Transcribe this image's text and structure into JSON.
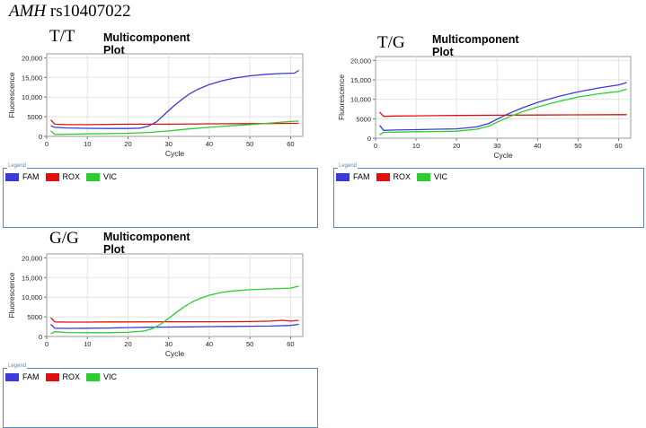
{
  "figure": {
    "gene": "AMH",
    "snp": "rs10407022"
  },
  "colors": {
    "FAM": "#3b3bd9",
    "ROX": "#e01010",
    "VIC": "#2ecc2e"
  },
  "chart_data": [
    {
      "type": "line",
      "genotype": "T/T",
      "title": "Multicomponent Plot",
      "xlabel": "Cycle",
      "ylabel": "Fluorescence",
      "xlim": [
        0,
        63
      ],
      "ylim": [
        0,
        21000
      ],
      "xticks": [
        "0",
        "10",
        "20",
        "30",
        "40",
        "50",
        "60"
      ],
      "yticks": [
        "0",
        "5000",
        "10,000",
        "15,000",
        "20,000"
      ],
      "legend_caption": "Legend",
      "legend": [
        "FAM",
        "ROX",
        "VIC"
      ],
      "series": [
        {
          "name": "FAM",
          "x": [
            1,
            2,
            5,
            10,
            15,
            20,
            23,
            25,
            27,
            29,
            31,
            33,
            35,
            37,
            40,
            43,
            46,
            50,
            54,
            58,
            61,
            62
          ],
          "y": [
            2700,
            2300,
            2150,
            2050,
            2000,
            2000,
            2100,
            2600,
            3700,
            5600,
            7500,
            9200,
            10700,
            11900,
            13200,
            14100,
            14800,
            15400,
            15800,
            16000,
            16100,
            16800
          ]
        },
        {
          "name": "ROX",
          "x": [
            1,
            2,
            5,
            10,
            15,
            20,
            30,
            40,
            50,
            60,
            62
          ],
          "y": [
            4200,
            3100,
            3000,
            3000,
            3050,
            3100,
            3100,
            3200,
            3250,
            3300,
            3300
          ]
        },
        {
          "name": "VIC",
          "x": [
            1,
            2,
            5,
            10,
            15,
            20,
            25,
            30,
            35,
            40,
            45,
            50,
            55,
            60,
            62
          ],
          "y": [
            1400,
            500,
            550,
            650,
            700,
            800,
            1000,
            1400,
            1900,
            2300,
            2700,
            3000,
            3400,
            3800,
            3900
          ]
        }
      ]
    },
    {
      "type": "line",
      "genotype": "T/G",
      "title": "Multicomponent Plot",
      "xlabel": "Cycle",
      "ylabel": "Fluorescence",
      "xlim": [
        0,
        63
      ],
      "ylim": [
        0,
        21000
      ],
      "xticks": [
        "0",
        "10",
        "20",
        "30",
        "40",
        "50",
        "60"
      ],
      "yticks": [
        "0",
        "5000",
        "10,000",
        "15,000",
        "20,000"
      ],
      "legend_caption": "Legend",
      "legend": [
        "FAM",
        "ROX",
        "VIC"
      ],
      "series": [
        {
          "name": "FAM",
          "x": [
            1,
            2,
            5,
            10,
            15,
            20,
            25,
            28,
            30,
            33,
            36,
            40,
            45,
            50,
            55,
            60,
            62
          ],
          "y": [
            3300,
            2000,
            2100,
            2200,
            2300,
            2400,
            2900,
            3800,
            4900,
            6400,
            7700,
            9200,
            10700,
            11900,
            12900,
            13700,
            14300
          ]
        },
        {
          "name": "ROX",
          "x": [
            1,
            2,
            5,
            10,
            15,
            20,
            30,
            40,
            50,
            60,
            62
          ],
          "y": [
            6700,
            5600,
            5700,
            5750,
            5800,
            5850,
            5900,
            5950,
            6000,
            6050,
            6050
          ]
        },
        {
          "name": "VIC",
          "x": [
            1,
            2,
            5,
            10,
            15,
            20,
            25,
            28,
            30,
            33,
            36,
            40,
            45,
            50,
            55,
            60,
            62
          ],
          "y": [
            900,
            1500,
            1550,
            1650,
            1700,
            1800,
            2300,
            3100,
            4100,
            5500,
            6700,
            8000,
            9400,
            10600,
            11400,
            12000,
            12600
          ]
        }
      ]
    },
    {
      "type": "line",
      "genotype": "G/G",
      "title": "Multicomponent Plot",
      "xlabel": "Cycle",
      "ylabel": "Fluorescence",
      "xlim": [
        0,
        63
      ],
      "ylim": [
        0,
        21000
      ],
      "xticks": [
        "0",
        "10",
        "20",
        "30",
        "40",
        "50",
        "60"
      ],
      "yticks": [
        "0",
        "5000",
        "10,000",
        "15,000",
        "20,000"
      ],
      "legend_caption": "Legend",
      "legend": [
        "FAM",
        "ROX",
        "VIC"
      ],
      "series": [
        {
          "name": "FAM",
          "x": [
            1,
            2,
            5,
            10,
            15,
            20,
            25,
            30,
            35,
            40,
            45,
            50,
            55,
            60,
            62
          ],
          "y": [
            3100,
            2100,
            2050,
            2100,
            2150,
            2250,
            2350,
            2400,
            2450,
            2500,
            2550,
            2600,
            2650,
            2800,
            3100
          ]
        },
        {
          "name": "ROX",
          "x": [
            1,
            2,
            5,
            10,
            15,
            20,
            30,
            40,
            50,
            55,
            58,
            60,
            62
          ],
          "y": [
            4800,
            3700,
            3650,
            3650,
            3700,
            3700,
            3750,
            3750,
            3800,
            3900,
            4100,
            3900,
            4100
          ]
        },
        {
          "name": "VIC",
          "x": [
            1,
            2,
            5,
            10,
            15,
            20,
            24,
            26,
            28,
            30,
            32,
            34,
            36,
            38,
            40,
            43,
            46,
            50,
            55,
            60,
            62
          ],
          "y": [
            700,
            1200,
            1000,
            950,
            950,
            1050,
            1400,
            2000,
            3100,
            4600,
            6200,
            7700,
            8900,
            9800,
            10500,
            11200,
            11600,
            11900,
            12100,
            12300,
            12800
          ]
        }
      ]
    }
  ]
}
